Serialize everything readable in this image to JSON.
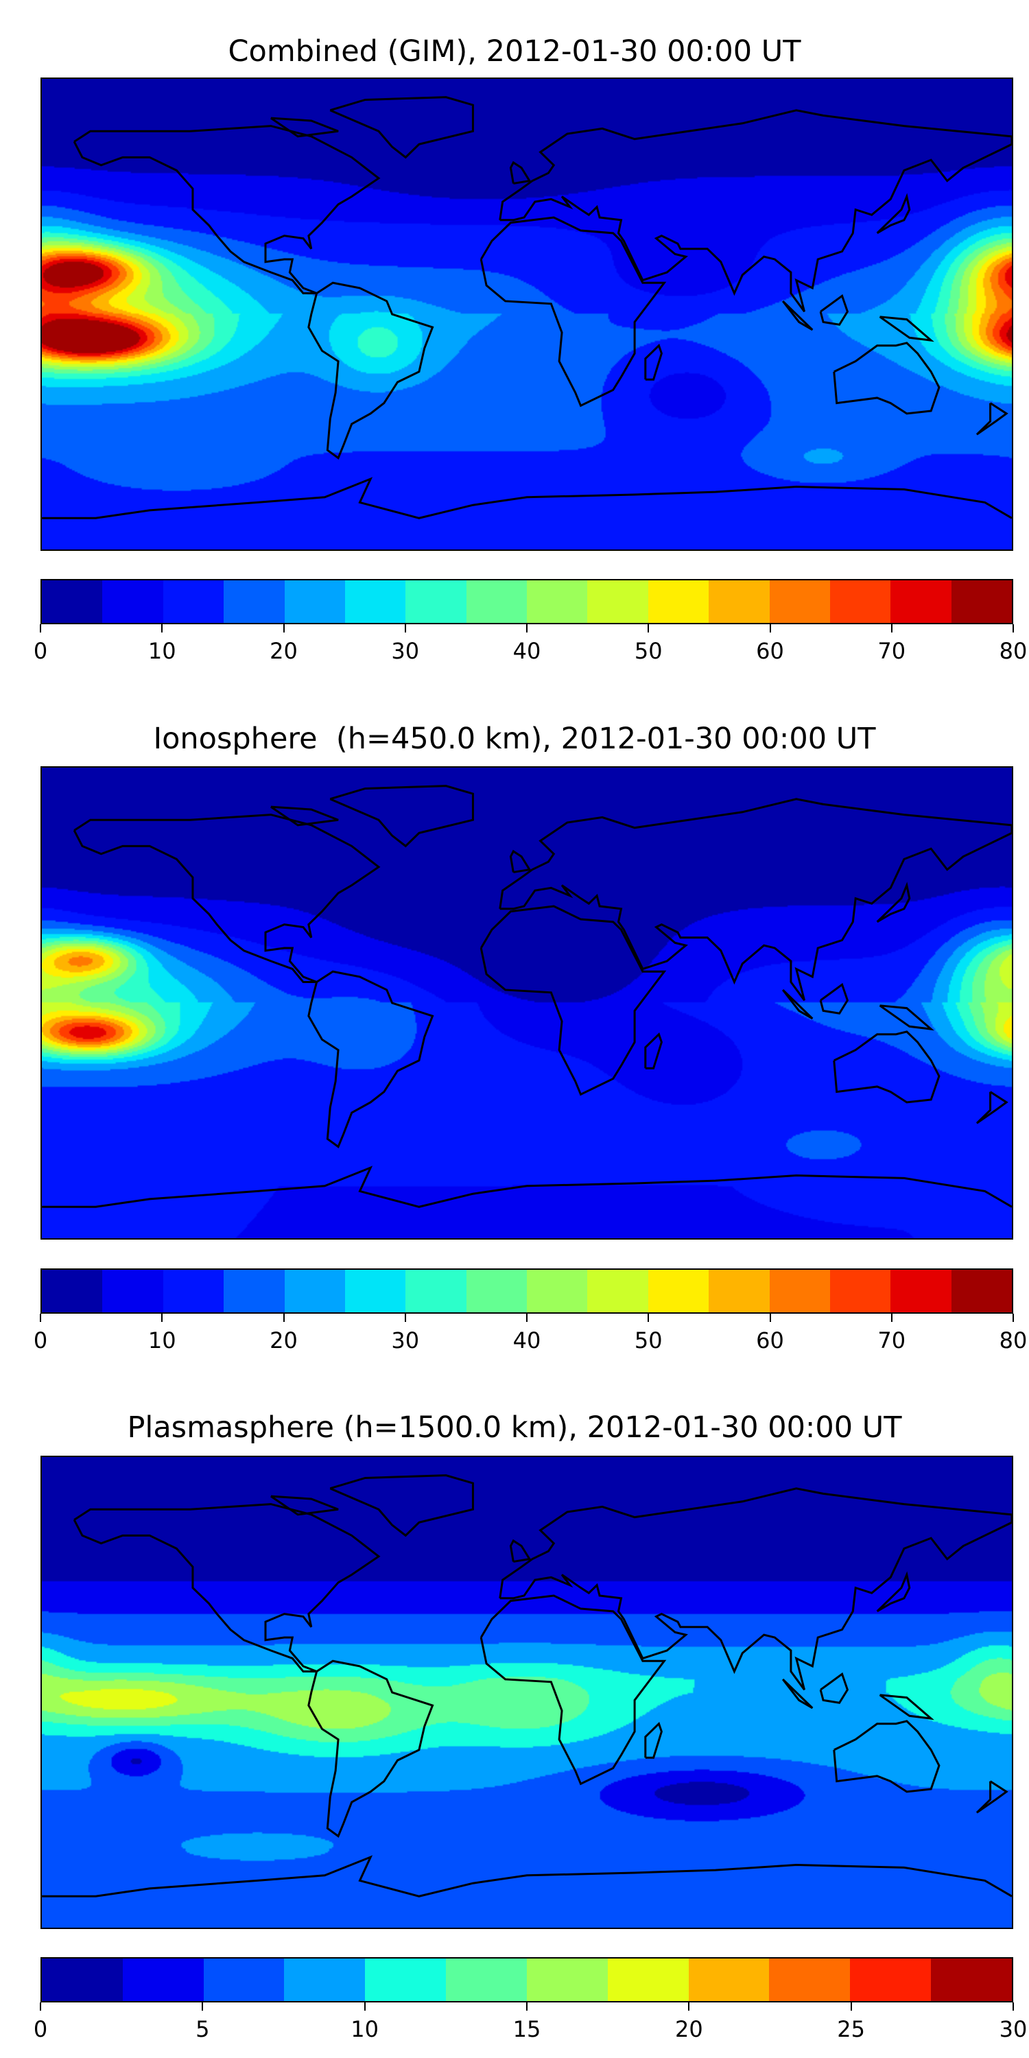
{
  "chart_data": [
    {
      "type": "heatmap",
      "subtype": "filled-contour world map",
      "title": "Combined (GIM), 2012-01-30 00:00 UT",
      "xlim": [
        -180,
        180
      ],
      "ylim": [
        -90,
        90
      ],
      "colorbar": {
        "levels": [
          0,
          5,
          10,
          15,
          20,
          25,
          30,
          35,
          40,
          45,
          50,
          55,
          60,
          65,
          70,
          75,
          80
        ],
        "ticks": [
          "0",
          "10",
          "20",
          "30",
          "40",
          "50",
          "60",
          "70",
          "80"
        ],
        "tick_values": [
          0,
          10,
          20,
          30,
          40,
          50,
          60,
          70,
          80
        ],
        "colors": [
          "#0000a8",
          "#0000f0",
          "#0014ff",
          "#0060ff",
          "#00a4ff",
          "#00e4f8",
          "#2cffca",
          "#64ff92",
          "#9cff5a",
          "#ccff2a",
          "#ffee00",
          "#ffb400",
          "#ff7800",
          "#ff3c00",
          "#e40000",
          "#a00000"
        ]
      },
      "features": "peaks ~75 over central Pacific near 10S and ~65 near 15N; secondary ~45-50 over western Pacific; lows ~5 over high northern latitudes"
    },
    {
      "type": "heatmap",
      "subtype": "filled-contour world map",
      "title": "Ionosphere  (h=450.0 km), 2012-01-30 00:00 UT",
      "xlim": [
        -180,
        180
      ],
      "ylim": [
        -90,
        90
      ],
      "colorbar": {
        "levels": [
          0,
          5,
          10,
          15,
          20,
          25,
          30,
          35,
          40,
          45,
          50,
          55,
          60,
          65,
          70,
          75,
          80
        ],
        "ticks": [
          "0",
          "10",
          "20",
          "30",
          "40",
          "50",
          "60",
          "70",
          "80"
        ],
        "tick_values": [
          0,
          10,
          20,
          30,
          40,
          50,
          60,
          70,
          80
        ],
        "colors": [
          "#0000a8",
          "#0000f0",
          "#0014ff",
          "#0060ff",
          "#00a4ff",
          "#00e4f8",
          "#2cffca",
          "#64ff92",
          "#9cff5a",
          "#ccff2a",
          "#ffee00",
          "#ffb400",
          "#ff7800",
          "#ff3c00",
          "#e40000",
          "#a00000"
        ]
      },
      "features": "peaks ~60 over central Pacific; ~35-40 over western Pacific; lows ~0-5 over Europe/Africa/north"
    },
    {
      "type": "heatmap",
      "subtype": "filled-contour world map",
      "title": "Plasmasphere (h=1500.0 km), 2012-01-30 00:00 UT",
      "xlim": [
        -180,
        180
      ],
      "ylim": [
        -90,
        90
      ],
      "colorbar": {
        "levels": [
          0,
          2.5,
          5,
          7.5,
          10,
          12.5,
          15,
          17.5,
          20,
          22.5,
          25,
          27.5,
          30
        ],
        "ticks": [
          "0",
          "5",
          "10",
          "15",
          "20",
          "25",
          "30"
        ],
        "tick_values": [
          0,
          5,
          10,
          15,
          20,
          25,
          30
        ],
        "colors": [
          "#0000a8",
          "#0000f0",
          "#0050ff",
          "#00a0ff",
          "#14ffde",
          "#5aff9c",
          "#a0ff56",
          "#e4ff14",
          "#ffb400",
          "#ff6c00",
          "#ff2000",
          "#aa0000"
        ]
      },
      "features": "equatorial band ~15-20 peaking over eastern Pacific/South America; lows ~0-2.5 at high northern latitudes and southern Indian Ocean"
    }
  ]
}
